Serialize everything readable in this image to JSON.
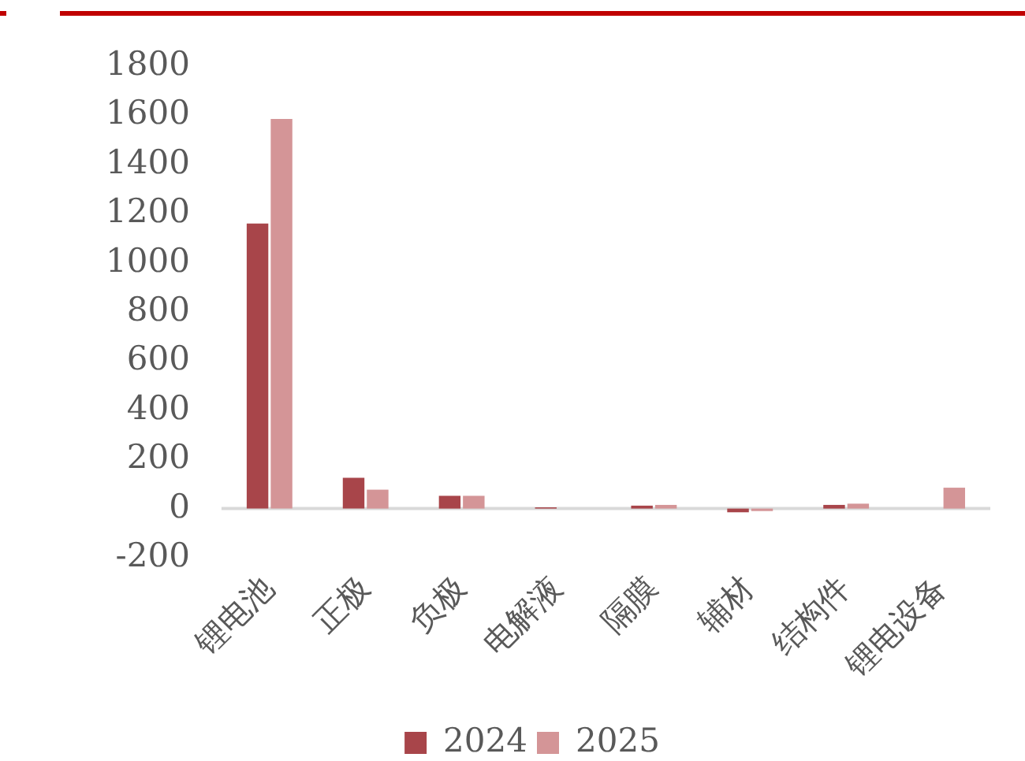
{
  "chart_data": {
    "type": "bar",
    "categories": [
      "锂电池",
      "正极",
      "负极",
      "电解液",
      "隔膜",
      "辅材",
      "结构件",
      "锂电设备"
    ],
    "series": [
      {
        "name": "2024",
        "color": "#a8454a",
        "values": [
          1160,
          125,
          52,
          5,
          12,
          -15,
          15,
          0
        ]
      },
      {
        "name": "2025",
        "color": "#d49597",
        "values": [
          1585,
          77,
          52,
          0,
          15,
          -10,
          20,
          85
        ]
      }
    ],
    "ylim": [
      -200,
      1800
    ],
    "yticks": [
      -200,
      0,
      200,
      400,
      600,
      800,
      1000,
      1200,
      1400,
      1600,
      1800
    ],
    "grid": false,
    "legend": "bottom"
  }
}
